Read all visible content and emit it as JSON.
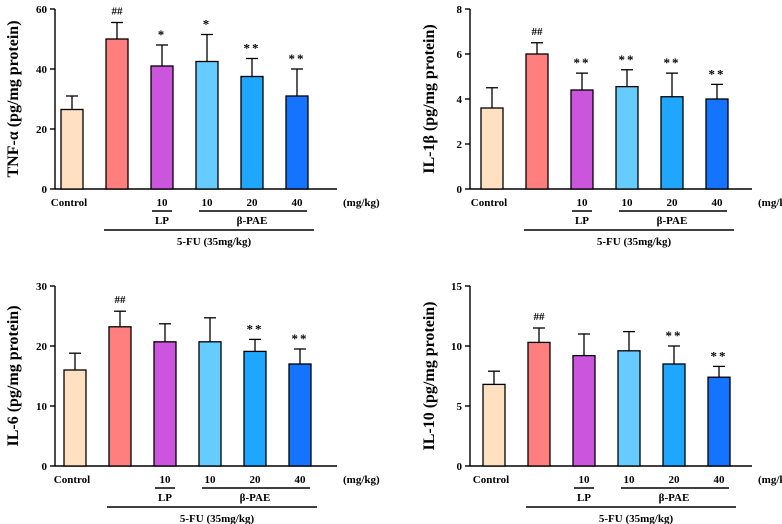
{
  "colors": {
    "control": "#FFE1C2",
    "model": "#FF7F7F",
    "lp": "#CC55DD",
    "pae10": "#66CCFF",
    "pae20": "#1FA6FF",
    "pae40": "#1474FF"
  },
  "shared_labels": {
    "control": "Control",
    "dose_unit": "(mg/kg)",
    "lp_group": "LP",
    "pae_group": "β-PAE",
    "fu_group": "5-FU (35mg/kg)",
    "dose_ticks": [
      "10",
      "10",
      "20",
      "40"
    ]
  },
  "chart_data": [
    {
      "type": "bar",
      "ylabel": "TNF-α (pg/mg protein)",
      "ylim": [
        0,
        60
      ],
      "yticks": [
        0,
        20,
        40,
        60
      ],
      "categories": [
        "Control",
        "5-FU",
        "LP 10",
        "β-PAE 10",
        "β-PAE 20",
        "β-PAE 40"
      ],
      "values": [
        26.5,
        50,
        41,
        42.5,
        37.5,
        31
      ],
      "errors": [
        4.5,
        5.5,
        7,
        9,
        6,
        9
      ],
      "annotations": [
        "",
        "##",
        "*",
        "*",
        "**",
        "**"
      ]
    },
    {
      "type": "bar",
      "ylabel": "IL-1β (pg/mg protein)",
      "ylim": [
        0,
        8
      ],
      "yticks": [
        0,
        2,
        4,
        6,
        8
      ],
      "categories": [
        "Control",
        "5-FU",
        "LP 10",
        "β-PAE 10",
        "β-PAE 20",
        "β-PAE 40"
      ],
      "values": [
        3.6,
        6.0,
        4.4,
        4.55,
        4.1,
        4.0
      ],
      "errors": [
        0.9,
        0.5,
        0.75,
        0.75,
        1.05,
        0.65
      ],
      "annotations": [
        "",
        "##",
        "**",
        "**",
        "**",
        "**"
      ]
    },
    {
      "type": "bar",
      "ylabel": "IL-6 (pg/mg protein)",
      "ylim": [
        0,
        30
      ],
      "yticks": [
        0,
        10,
        20,
        30
      ],
      "categories": [
        "Control",
        "5-FU",
        "LP 10",
        "β-PAE 10",
        "β-PAE 20",
        "β-PAE 40"
      ],
      "values": [
        16,
        23.2,
        20.7,
        20.7,
        19.1,
        17.0
      ],
      "errors": [
        2.8,
        2.6,
        3.0,
        4.0,
        2.0,
        2.5
      ],
      "annotations": [
        "",
        "##",
        "",
        "",
        "**",
        "**"
      ]
    },
    {
      "type": "bar",
      "ylabel": "IL-10 (pg/mg protein)",
      "ylim": [
        0,
        15
      ],
      "yticks": [
        0,
        5,
        10,
        15
      ],
      "categories": [
        "Control",
        "5-FU",
        "LP 10",
        "β-PAE 10",
        "β-PAE 20",
        "β-PAE 40"
      ],
      "values": [
        6.8,
        10.3,
        9.2,
        9.6,
        8.5,
        7.4
      ],
      "errors": [
        1.1,
        1.2,
        1.8,
        1.6,
        1.5,
        0.9
      ],
      "annotations": [
        "",
        "##",
        "",
        "",
        "**",
        "**"
      ]
    }
  ]
}
